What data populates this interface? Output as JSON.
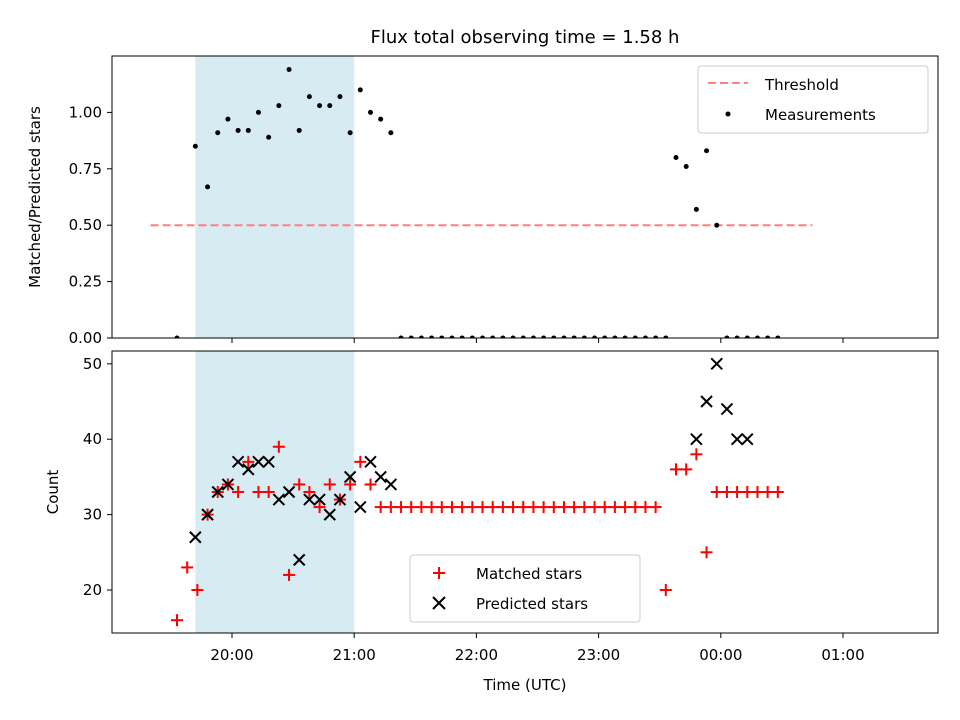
{
  "chart_data": [
    {
      "type": "scatter",
      "title": "Flux total observing time = 1.58 h",
      "ylabel": "Matched/Predicted stars",
      "ylim": [
        0,
        1.25
      ],
      "yticks": [
        "0.00",
        "0.25",
        "0.50",
        "0.75",
        "1.00"
      ],
      "grid": false,
      "legend_position": "top-right",
      "shaded_interval": [
        "19:42",
        "21:00"
      ],
      "colors": {
        "shade": "#add8e6",
        "threshold": "#ff8080",
        "points": "#000000"
      },
      "series": [
        {
          "name": "Threshold",
          "kind": "dashed-line",
          "x": [
            "19:20",
            "00:45"
          ],
          "y": [
            0.5,
            0.5
          ]
        },
        {
          "name": "Measurements",
          "kind": "dots",
          "x": [
            "19:33",
            "19:42",
            "19:48",
            "19:53",
            "19:58",
            "20:03",
            "20:08",
            "20:13",
            "20:18",
            "20:23",
            "20:28",
            "20:33",
            "20:38",
            "20:43",
            "20:48",
            "20:53",
            "20:58",
            "21:03",
            "21:08",
            "21:13",
            "21:18",
            "21:23",
            "21:28",
            "21:33",
            "21:38",
            "21:43",
            "21:48",
            "21:53",
            "21:58",
            "22:03",
            "22:08",
            "22:13",
            "22:18",
            "22:23",
            "22:28",
            "22:33",
            "22:38",
            "22:43",
            "22:48",
            "22:53",
            "22:58",
            "23:03",
            "23:08",
            "23:13",
            "23:18",
            "23:23",
            "23:28",
            "23:33",
            "23:38",
            "23:43",
            "23:48",
            "23:53",
            "23:58",
            "00:03",
            "00:08",
            "00:13",
            "00:18",
            "00:23",
            "00:28"
          ],
          "y": [
            0.0,
            0.85,
            0.67,
            0.91,
            0.97,
            0.92,
            0.92,
            1.0,
            0.89,
            1.03,
            1.19,
            0.92,
            1.07,
            1.03,
            1.03,
            1.07,
            0.91,
            1.1,
            1.0,
            0.97,
            0.91,
            0.0,
            0.0,
            0.0,
            0.0,
            0.0,
            0.0,
            0.0,
            0.0,
            0.0,
            0.0,
            0.0,
            0.0,
            0.0,
            0.0,
            0.0,
            0.0,
            0.0,
            0.0,
            0.0,
            0.0,
            0.0,
            0.0,
            0.0,
            0.0,
            0.0,
            0.0,
            0.0,
            0.8,
            0.76,
            0.57,
            0.83,
            0.5,
            0.0,
            0.0,
            0.0,
            0.0,
            0.0,
            0.0
          ]
        }
      ]
    },
    {
      "type": "scatter",
      "xlabel": "Time (UTC)",
      "ylabel": "Count",
      "xticks": [
        "20:00",
        "21:00",
        "22:00",
        "23:00",
        "00:00",
        "01:00"
      ],
      "yticks": [
        "20",
        "30",
        "40",
        "50"
      ],
      "ylim": [
        14.3,
        51.7
      ],
      "grid": false,
      "legend_position": "bottom-center",
      "shaded_interval": [
        "19:42",
        "21:00"
      ],
      "colors": {
        "shade": "#add8e6",
        "matched": "#ff0000",
        "predicted": "#000000"
      },
      "series": [
        {
          "name": "Matched stars",
          "marker": "+",
          "x": [
            "19:33",
            "19:38",
            "19:43",
            "19:48",
            "19:53",
            "19:58",
            "20:03",
            "20:08",
            "20:13",
            "20:18",
            "20:23",
            "20:28",
            "20:33",
            "20:38",
            "20:43",
            "20:48",
            "20:53",
            "20:58",
            "21:03",
            "21:08",
            "21:13",
            "21:18",
            "21:23",
            "21:28",
            "21:33",
            "21:38",
            "21:43",
            "21:48",
            "21:53",
            "21:58",
            "22:03",
            "22:08",
            "22:13",
            "22:18",
            "22:23",
            "22:28",
            "22:33",
            "22:38",
            "22:43",
            "22:48",
            "22:53",
            "22:58",
            "23:03",
            "23:08",
            "23:13",
            "23:18",
            "23:23",
            "23:28",
            "23:33",
            "23:38",
            "23:43",
            "23:48",
            "23:53",
            "23:58",
            "00:03",
            "00:08",
            "00:13",
            "00:18",
            "00:23",
            "00:28"
          ],
          "y": [
            16,
            23,
            20,
            30,
            33,
            34,
            33,
            37,
            33,
            33,
            39,
            22,
            34,
            33,
            31,
            34,
            32,
            34,
            37,
            34,
            31,
            31,
            31,
            31,
            31,
            31,
            31,
            31,
            31,
            31,
            31,
            31,
            31,
            31,
            31,
            31,
            31,
            31,
            31,
            31,
            31,
            31,
            31,
            31,
            31,
            31,
            31,
            31,
            20,
            36,
            36,
            38,
            25,
            33,
            33,
            33,
            33,
            33,
            33,
            33
          ]
        },
        {
          "name": "Predicted stars",
          "marker": "x",
          "x": [
            "19:42",
            "19:48",
            "19:53",
            "19:58",
            "20:03",
            "20:08",
            "20:13",
            "20:18",
            "20:23",
            "20:28",
            "20:33",
            "20:38",
            "20:43",
            "20:48",
            "20:53",
            "20:58",
            "21:03",
            "21:08",
            "21:13",
            "21:18",
            "23:48",
            "23:53",
            "23:58",
            "00:03",
            "00:08",
            "00:13"
          ],
          "y": [
            27,
            30,
            33,
            34,
            37,
            36,
            37,
            37,
            32,
            33,
            24,
            32,
            32,
            30,
            32,
            35,
            31,
            37,
            35,
            34,
            40,
            45,
            50,
            44,
            40,
            40
          ]
        }
      ]
    }
  ]
}
